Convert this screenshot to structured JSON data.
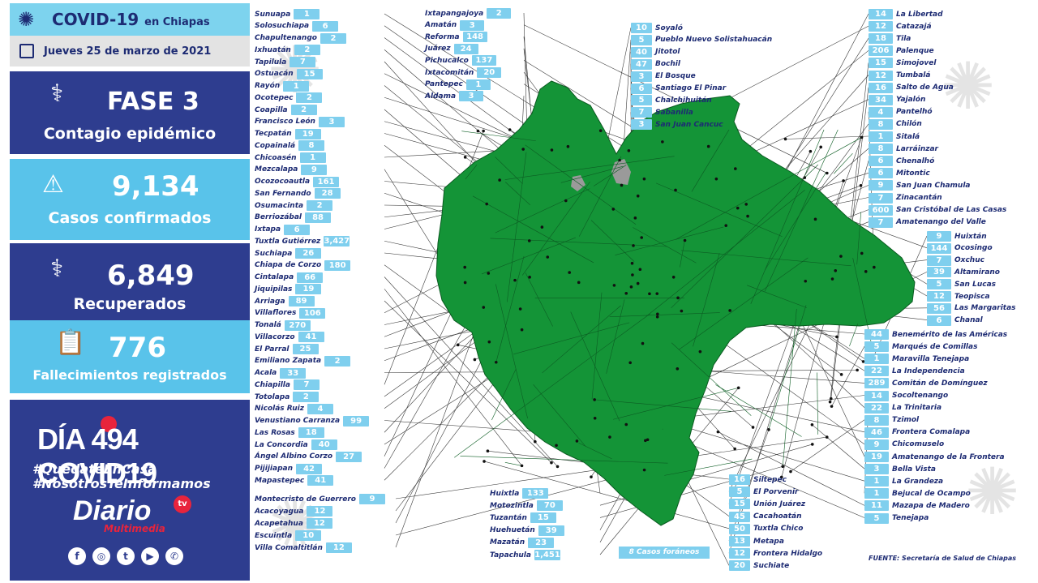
{
  "header": {
    "title": "COVID-19",
    "title_suffix": "en Chiapas",
    "date": "Jueves 25 de marzo de 2021"
  },
  "fase": {
    "title": "FASE 3",
    "subtitle": "Contagio epidémico"
  },
  "casos": {
    "value": "9,134",
    "label": "Casos confirmados"
  },
  "recuperados": {
    "value": "6,849",
    "label": "Recuperados"
  },
  "fallecimientos": {
    "value": "776",
    "label": "Fallecimientos registrados"
  },
  "dia": {
    "text": "DÍA 494 COVID19",
    "hashtag1": "#QuédateEnCasa",
    "hashtag2": "#NosotrosTeInformamos",
    "logo": "Diario",
    "logo_tv": "tv",
    "logo_sub": "Multimedia"
  },
  "social_icons": [
    "facebook-icon",
    "instagram-icon",
    "twitter-icon",
    "youtube-icon",
    "whatsapp-icon"
  ],
  "foraneos": "8 Casos foráneos",
  "fuente": "FUENTE: Secretaría de Salud de Chiapas",
  "colors": {
    "navy": "#2e3d8f",
    "sky": "#59c3ea",
    "map_green": "#149437",
    "label": "#1d2b73"
  },
  "left_list": [
    {
      "name": "Sunuapa",
      "value": "1"
    },
    {
      "name": "Solosuchiapa",
      "value": "6"
    },
    {
      "name": "Chapultenango",
      "value": "2"
    },
    {
      "name": "Ixhuatán",
      "value": "2"
    },
    {
      "name": "Tapilula",
      "value": "7"
    },
    {
      "name": "Ostuacán",
      "value": "15"
    },
    {
      "name": "Rayón",
      "value": "1"
    },
    {
      "name": "Ocotepec",
      "value": "2"
    },
    {
      "name": "Coapilla",
      "value": "2"
    },
    {
      "name": "Francisco León",
      "value": "3"
    },
    {
      "name": "Tecpatán",
      "value": "19"
    },
    {
      "name": "Copainalá",
      "value": "8"
    },
    {
      "name": "Chicoasén",
      "value": "1"
    },
    {
      "name": "Mezcalapa",
      "value": "9"
    },
    {
      "name": "Ocozocoautla",
      "value": "161"
    },
    {
      "name": "San Fernando",
      "value": "28"
    },
    {
      "name": "Osumacinta",
      "value": "2"
    },
    {
      "name": "Berriozábal",
      "value": "88"
    },
    {
      "name": "Ixtapa",
      "value": "6"
    },
    {
      "name": "Tuxtla Gutiérrez",
      "value": "3,427"
    },
    {
      "name": "Suchiapa",
      "value": "26"
    },
    {
      "name": "Chiapa de Corzo",
      "value": "180"
    },
    {
      "name": "Cintalapa",
      "value": "66"
    },
    {
      "name": "Jiquipilas",
      "value": "19"
    },
    {
      "name": "Arriaga",
      "value": "89"
    },
    {
      "name": "Villaflores",
      "value": "106"
    },
    {
      "name": "Tonalá",
      "value": "270"
    },
    {
      "name": "Villacorzo",
      "value": "41"
    },
    {
      "name": "El Parral",
      "value": "25"
    },
    {
      "name": "Emiliano Zapata",
      "value": "2"
    },
    {
      "name": "Acala",
      "value": "33"
    },
    {
      "name": "Chiapilla",
      "value": "7"
    },
    {
      "name": "Totolapa",
      "value": "2"
    },
    {
      "name": "Nicolás Ruiz",
      "value": "4"
    },
    {
      "name": "Venustiano Carranza",
      "value": "99"
    },
    {
      "name": "Las Rosas",
      "value": "18"
    },
    {
      "name": "La Concordia",
      "value": "40"
    },
    {
      "name": "Ángel Albino Corzo",
      "value": "27"
    },
    {
      "name": "Pijijiapan",
      "value": "42"
    },
    {
      "name": "Mapastepec",
      "value": "41"
    }
  ],
  "left_list2": [
    {
      "name": "Montecristo de Guerrero",
      "value": "9"
    },
    {
      "name": "Acacoyagua",
      "value": "12"
    },
    {
      "name": "Acapetahua",
      "value": "12"
    },
    {
      "name": "Escuintla",
      "value": "10"
    },
    {
      "name": "Villa Comaltitlán",
      "value": "12"
    }
  ],
  "top_mid": [
    {
      "name": "Ixtapangajoya",
      "value": "2"
    },
    {
      "name": "Amatán",
      "value": "3"
    },
    {
      "name": "Reforma",
      "value": "148"
    },
    {
      "name": "Juárez",
      "value": "24"
    },
    {
      "name": "Pichucalco",
      "value": "137"
    },
    {
      "name": "Ixtacomitán",
      "value": "20"
    },
    {
      "name": "Pantepec",
      "value": "1"
    },
    {
      "name": "Aldama",
      "value": "3"
    }
  ],
  "top_center": [
    {
      "name": "Soyaló",
      "value": "10"
    },
    {
      "name": "Pueblo Nuevo Solistahuacán",
      "value": "5"
    },
    {
      "name": "Jitotol",
      "value": "40"
    },
    {
      "name": "Bochil",
      "value": "47"
    },
    {
      "name": "El Bosque",
      "value": "3"
    },
    {
      "name": "Santiago El Pinar",
      "value": "6"
    },
    {
      "name": "Chalchihuitán",
      "value": "5"
    },
    {
      "name": "Sabanilla",
      "value": "7"
    },
    {
      "name": "San Juan Cancuc",
      "value": "3"
    }
  ],
  "right_list": [
    {
      "name": "La Libertad",
      "value": "14"
    },
    {
      "name": "Catazajá",
      "value": "12"
    },
    {
      "name": "Tila",
      "value": "18"
    },
    {
      "name": "Palenque",
      "value": "206"
    },
    {
      "name": "Simojovel",
      "value": "15"
    },
    {
      "name": "Tumbalá",
      "value": "12"
    },
    {
      "name": "Salto de Agua",
      "value": "16"
    },
    {
      "name": "Yajalón",
      "value": "34"
    },
    {
      "name": "Pantelhó",
      "value": "4"
    },
    {
      "name": "Chilón",
      "value": "8"
    },
    {
      "name": "Sitalá",
      "value": "1"
    },
    {
      "name": "Larráinzar",
      "value": "8"
    },
    {
      "name": "Chenalhó",
      "value": "6"
    },
    {
      "name": "Mitontic",
      "value": "6"
    },
    {
      "name": "San Juan Chamula",
      "value": "9"
    },
    {
      "name": "Zinacantán",
      "value": "7"
    },
    {
      "name": "San Cristóbal de Las Casas",
      "value": "600"
    },
    {
      "name": "Amatenango del Valle",
      "value": "7"
    }
  ],
  "right_list2": [
    {
      "name": "Huixtán",
      "value": "9"
    },
    {
      "name": "Ocosingo",
      "value": "144"
    },
    {
      "name": "Oxchuc",
      "value": "7"
    },
    {
      "name": "Altamirano",
      "value": "39"
    },
    {
      "name": "San Lucas",
      "value": "5"
    },
    {
      "name": "Teopisca",
      "value": "12"
    },
    {
      "name": "Las Margaritas",
      "value": "56"
    },
    {
      "name": "Chanal",
      "value": "6"
    }
  ],
  "right_list3": [
    {
      "name": "Benemérito de las Américas",
      "value": "44"
    },
    {
      "name": "Marqués de Comillas",
      "value": "5"
    },
    {
      "name": "Maravilla Tenejapa",
      "value": "1"
    },
    {
      "name": "La Independencia",
      "value": "22"
    },
    {
      "name": "Comitán de Domínguez",
      "value": "289"
    },
    {
      "name": "Socoltenango",
      "value": "14"
    },
    {
      "name": "La Trinitaria",
      "value": "22"
    },
    {
      "name": "Tzimol",
      "value": "8"
    },
    {
      "name": "Frontera Comalapa",
      "value": "46"
    },
    {
      "name": "Chicomuselo",
      "value": "9"
    },
    {
      "name": "Amatenango de la Frontera",
      "value": "19"
    },
    {
      "name": "Bella Vista",
      "value": "3"
    },
    {
      "name": "La Grandeza",
      "value": "1"
    },
    {
      "name": "Bejucal de Ocampo",
      "value": "1"
    },
    {
      "name": "Mazapa de Madero",
      "value": "11"
    },
    {
      "name": "Tenejapa",
      "value": "5"
    }
  ],
  "bottom_mid_left": [
    {
      "name": "Huixtla",
      "value": "133"
    },
    {
      "name": "Motozintla",
      "value": "70"
    },
    {
      "name": "Tuzantán",
      "value": "15"
    },
    {
      "name": "Huehuetán",
      "value": "39"
    },
    {
      "name": "Mazatán",
      "value": "23"
    },
    {
      "name": "Tapachula",
      "value": "1,451"
    }
  ],
  "bottom_mid_right": [
    {
      "name": "Siltepec",
      "value": "16"
    },
    {
      "name": "El Porvenir",
      "value": "5"
    },
    {
      "name": "Unión Juárez",
      "value": "15"
    },
    {
      "name": "Cacahoatán",
      "value": "45"
    },
    {
      "name": "Tuxtla Chico",
      "value": "50"
    },
    {
      "name": "Metapa",
      "value": "13"
    },
    {
      "name": "Frontera Hidalgo",
      "value": "12"
    },
    {
      "name": "Suchiate",
      "value": "20"
    }
  ]
}
